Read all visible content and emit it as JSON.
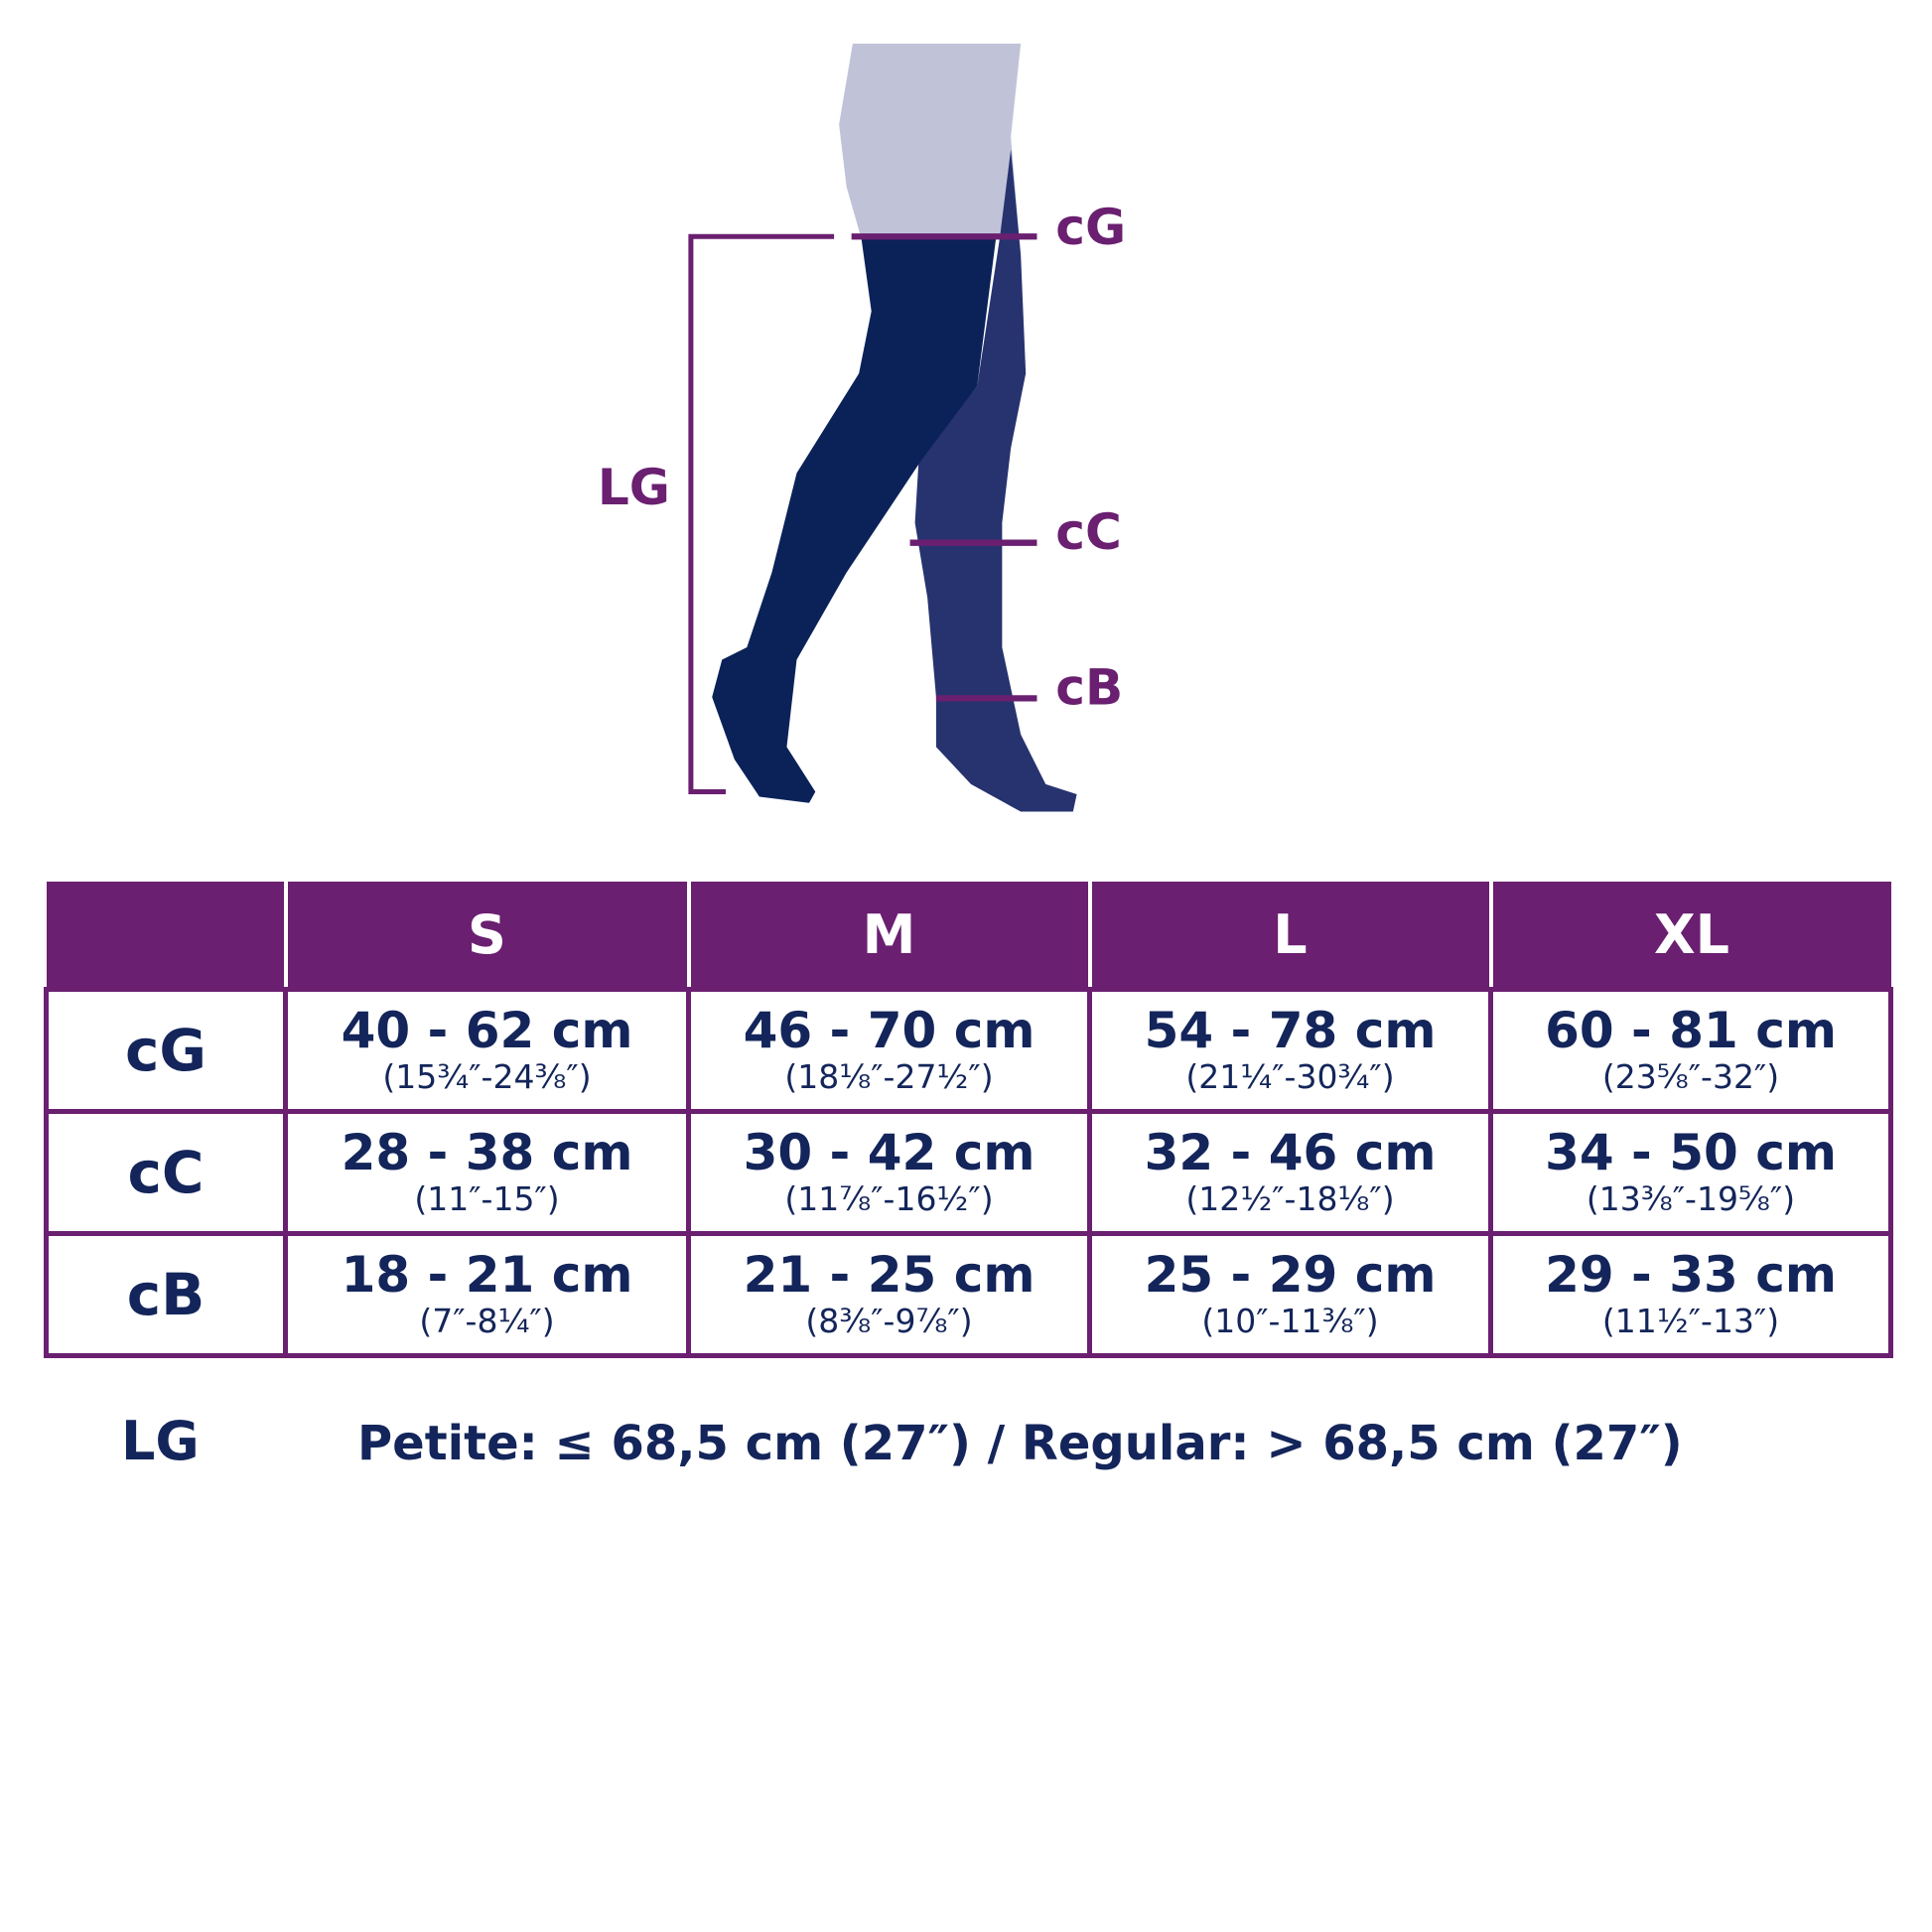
{
  "colors": {
    "purple": "#6a1f70",
    "navy": "#0b2258",
    "leg_back": "#27336f",
    "skin": "#c0c3d8",
    "text": "#13255a"
  },
  "diagram": {
    "labels": {
      "cG": "cG",
      "cC": "cC",
      "cB": "cB",
      "LG": "LG"
    }
  },
  "table": {
    "headers": [
      "",
      "S",
      "M",
      "L",
      "XL"
    ],
    "rows": [
      {
        "label": "cG",
        "cells": [
          {
            "cm": "40 - 62 cm",
            "in": "(15¾″-24⅜″)"
          },
          {
            "cm": "46 - 70 cm",
            "in": "(18⅛″-27½″)"
          },
          {
            "cm": "54 - 78 cm",
            "in": "(21¼″-30¾″)"
          },
          {
            "cm": "60 - 81 cm",
            "in": "(23⅝″-32″)"
          }
        ]
      },
      {
        "label": "cC",
        "cells": [
          {
            "cm": "28 - 38 cm",
            "in": "(11″-15″)"
          },
          {
            "cm": "30 - 42 cm",
            "in": "(11⅞″-16½″)"
          },
          {
            "cm": "32 - 46 cm",
            "in": "(12½″-18⅛″)"
          },
          {
            "cm": "34 - 50 cm",
            "in": "(13⅜″-19⅝″)"
          }
        ]
      },
      {
        "label": "cB",
        "cells": [
          {
            "cm": "18 - 21 cm",
            "in": "(7″-8¼″)"
          },
          {
            "cm": "21 - 25 cm",
            "in": "(8⅜″-9⅞″)"
          },
          {
            "cm": "25 - 29 cm",
            "in": "(10″-11⅜″)"
          },
          {
            "cm": "29 - 33 cm",
            "in": "(11½″-13″)"
          }
        ]
      }
    ]
  },
  "footer": {
    "label": "LG",
    "text": "Petite: ≤ 68,5 cm (27″) / Regular: > 68,5 cm (27″)"
  }
}
